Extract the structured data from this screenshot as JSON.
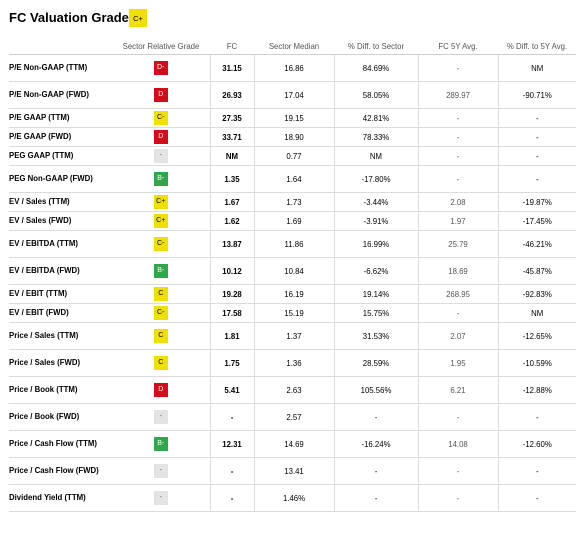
{
  "page": {
    "title": "FC Valuation Grade",
    "overall_grade": "C+",
    "overall_grade_color": "#efe000"
  },
  "table": {
    "headers": [
      "",
      "Sector Relative Grade",
      "FC",
      "Sector Median",
      "% Diff. to Sector",
      "FC 5Y Avg.",
      "% Diff. to 5Y Avg."
    ],
    "grade_colors": {
      "D": "#d40b18",
      "C": "#efe000",
      "B": "#2ea84a",
      "NA": "#e3e3e3"
    },
    "rows": [
      {
        "metric": "P/E Non-GAAP (TTM)",
        "grade": "D-",
        "fc": "31.15",
        "sector_median": "16.86",
        "diff_sector": "84.69%",
        "fc_5y": "-",
        "diff_5y": "NM"
      },
      {
        "metric": "P/E Non-GAAP (FWD)",
        "grade": "D",
        "fc": "26.93",
        "sector_median": "17.04",
        "diff_sector": "58.05%",
        "fc_5y": "289.97",
        "diff_5y": "-90.71%"
      },
      {
        "metric": "P/E GAAP (TTM)",
        "grade": "C-",
        "fc": "27.35",
        "sector_median": "19.15",
        "diff_sector": "42.81%",
        "fc_5y": "-",
        "diff_5y": "-"
      },
      {
        "metric": "P/E GAAP (FWD)",
        "grade": "D",
        "fc": "33.71",
        "sector_median": "18.90",
        "diff_sector": "78.33%",
        "fc_5y": "-",
        "diff_5y": "-"
      },
      {
        "metric": "PEG GAAP (TTM)",
        "grade": "-",
        "fc": "NM",
        "sector_median": "0.77",
        "diff_sector": "NM",
        "fc_5y": "-",
        "diff_5y": "-"
      },
      {
        "metric": "PEG Non-GAAP (FWD)",
        "grade": "B-",
        "fc": "1.35",
        "sector_median": "1.64",
        "diff_sector": "-17.80%",
        "fc_5y": "-",
        "diff_5y": "-"
      },
      {
        "metric": "EV / Sales (TTM)",
        "grade": "C+",
        "fc": "1.67",
        "sector_median": "1.73",
        "diff_sector": "-3.44%",
        "fc_5y": "2.08",
        "diff_5y": "-19.87%"
      },
      {
        "metric": "EV / Sales (FWD)",
        "grade": "C+",
        "fc": "1.62",
        "sector_median": "1.69",
        "diff_sector": "-3.91%",
        "fc_5y": "1.97",
        "diff_5y": "-17.45%"
      },
      {
        "metric": "EV / EBITDA (TTM)",
        "grade": "C-",
        "fc": "13.87",
        "sector_median": "11.86",
        "diff_sector": "16.99%",
        "fc_5y": "25.79",
        "diff_5y": "-46.21%"
      },
      {
        "metric": "EV / EBITDA (FWD)",
        "grade": "B-",
        "fc": "10.12",
        "sector_median": "10.84",
        "diff_sector": "-6.62%",
        "fc_5y": "18.69",
        "diff_5y": "-45.87%"
      },
      {
        "metric": "EV / EBIT (TTM)",
        "grade": "C",
        "fc": "19.28",
        "sector_median": "16.19",
        "diff_sector": "19.14%",
        "fc_5y": "268.95",
        "diff_5y": "-92.83%"
      },
      {
        "metric": "EV / EBIT (FWD)",
        "grade": "C-",
        "fc": "17.58",
        "sector_median": "15.19",
        "diff_sector": "15.75%",
        "fc_5y": "-",
        "diff_5y": "NM"
      },
      {
        "metric": "Price / Sales (TTM)",
        "grade": "C",
        "fc": "1.81",
        "sector_median": "1.37",
        "diff_sector": "31.53%",
        "fc_5y": "2.07",
        "diff_5y": "-12.65%"
      },
      {
        "metric": "Price / Sales (FWD)",
        "grade": "C",
        "fc": "1.75",
        "sector_median": "1.36",
        "diff_sector": "28.59%",
        "fc_5y": "1.95",
        "diff_5y": "-10.59%"
      },
      {
        "metric": "Price / Book (TTM)",
        "grade": "D",
        "fc": "5.41",
        "sector_median": "2.63",
        "diff_sector": "105.56%",
        "fc_5y": "6.21",
        "diff_5y": "-12.88%"
      },
      {
        "metric": "Price / Book (FWD)",
        "grade": "-",
        "fc": "-",
        "sector_median": "2.57",
        "diff_sector": "-",
        "fc_5y": "-",
        "diff_5y": "-"
      },
      {
        "metric": "Price / Cash Flow (TTM)",
        "grade": "B-",
        "fc": "12.31",
        "sector_median": "14.69",
        "diff_sector": "-16.24%",
        "fc_5y": "14.08",
        "diff_5y": "-12.60%"
      },
      {
        "metric": "Price / Cash Flow (FWD)",
        "grade": "-",
        "fc": "-",
        "sector_median": "13.41",
        "diff_sector": "-",
        "fc_5y": "-",
        "diff_5y": "-"
      },
      {
        "metric": "Dividend Yield (TTM)",
        "grade": "-",
        "fc": "-",
        "sector_median": "1.46%",
        "diff_sector": "-",
        "fc_5y": "-",
        "diff_5y": "-"
      }
    ]
  }
}
